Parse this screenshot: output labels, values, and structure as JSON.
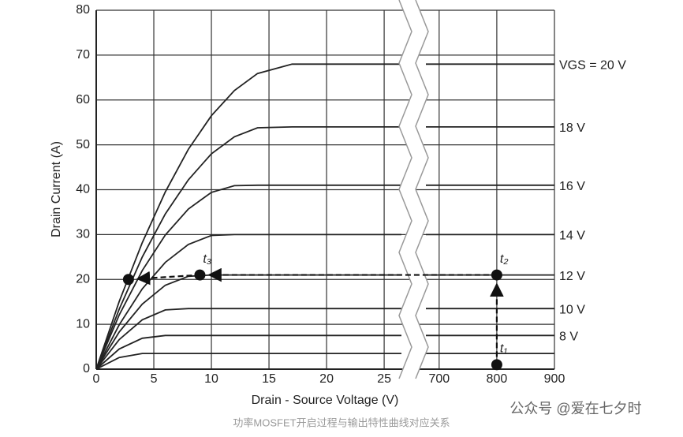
{
  "chart_data": {
    "type": "line",
    "xlabel": "Drain - Source Voltage (V)",
    "ylabel": "Drain Current (A)",
    "xlim": [
      0,
      26.5
    ],
    "x2lim": [
      677,
      900
    ],
    "xticks": [
      0,
      5,
      10,
      15,
      20,
      25
    ],
    "x2ticks": [
      700,
      800,
      900
    ],
    "ylim": [
      0,
      80
    ],
    "yticks": [
      0,
      10,
      20,
      30,
      40,
      50,
      60,
      70,
      80
    ],
    "grid": true,
    "color": "#222222",
    "x": [
      0,
      2,
      4,
      6,
      8,
      10,
      12,
      14,
      17,
      20,
      26.5,
      677,
      800,
      900
    ],
    "series": [
      {
        "name": "VGS = 20 V",
        "values": [
          0,
          15.1,
          28.2,
          39.5,
          49.0,
          56.5,
          62.1,
          65.9,
          68,
          68,
          68,
          68,
          68,
          68
        ]
      },
      {
        "name": "18 V",
        "values": [
          0,
          13.4,
          25.0,
          34.6,
          42.2,
          48.0,
          51.8,
          53.8,
          54,
          54,
          54,
          54,
          54,
          54
        ]
      },
      {
        "name": "16 V",
        "values": [
          0,
          12.1,
          22.0,
          29.9,
          35.7,
          39.4,
          40.9,
          41,
          41,
          41,
          41,
          41,
          41,
          41
        ]
      },
      {
        "name": "14 V",
        "values": [
          0,
          9.9,
          17.9,
          23.8,
          27.8,
          29.8,
          30,
          30,
          30,
          30,
          30,
          30,
          30,
          30
        ]
      },
      {
        "name": "12 V",
        "values": [
          0,
          8.3,
          14.5,
          18.7,
          20.7,
          21,
          21,
          21,
          21,
          21,
          21,
          21,
          21,
          21
        ]
      },
      {
        "name": "10 V",
        "values": [
          0,
          6.6,
          11.0,
          13.2,
          13.5,
          13.5,
          13.5,
          13.5,
          13.5,
          13.5,
          13.5,
          13.5,
          13.5,
          13.5
        ]
      },
      {
        "name": "8 V",
        "values": [
          0,
          4.5,
          6.9,
          7.5,
          7.5,
          7.5,
          7.5,
          7.5,
          7.5,
          7.5,
          7.5,
          7.5,
          7.5,
          7.5
        ]
      },
      {
        "values": [
          0,
          2.6,
          3.5,
          3.5,
          3.5,
          3.5,
          3.5,
          3.5,
          3.5,
          3.5,
          3.5,
          3.5,
          3.5,
          3.5
        ]
      }
    ],
    "points": [
      {
        "x": 800,
        "y": 1,
        "label": "t₁"
      },
      {
        "x": 800,
        "y": 21,
        "label": "t₂"
      },
      {
        "x": 9,
        "y": 21,
        "label": "t₃"
      },
      {
        "x": 2.8,
        "y": 20
      }
    ]
  },
  "watermark": "公众号 @爱在七夕时",
  "caption": "功率MOSFET开启过程与输出特性曲线对应关系"
}
